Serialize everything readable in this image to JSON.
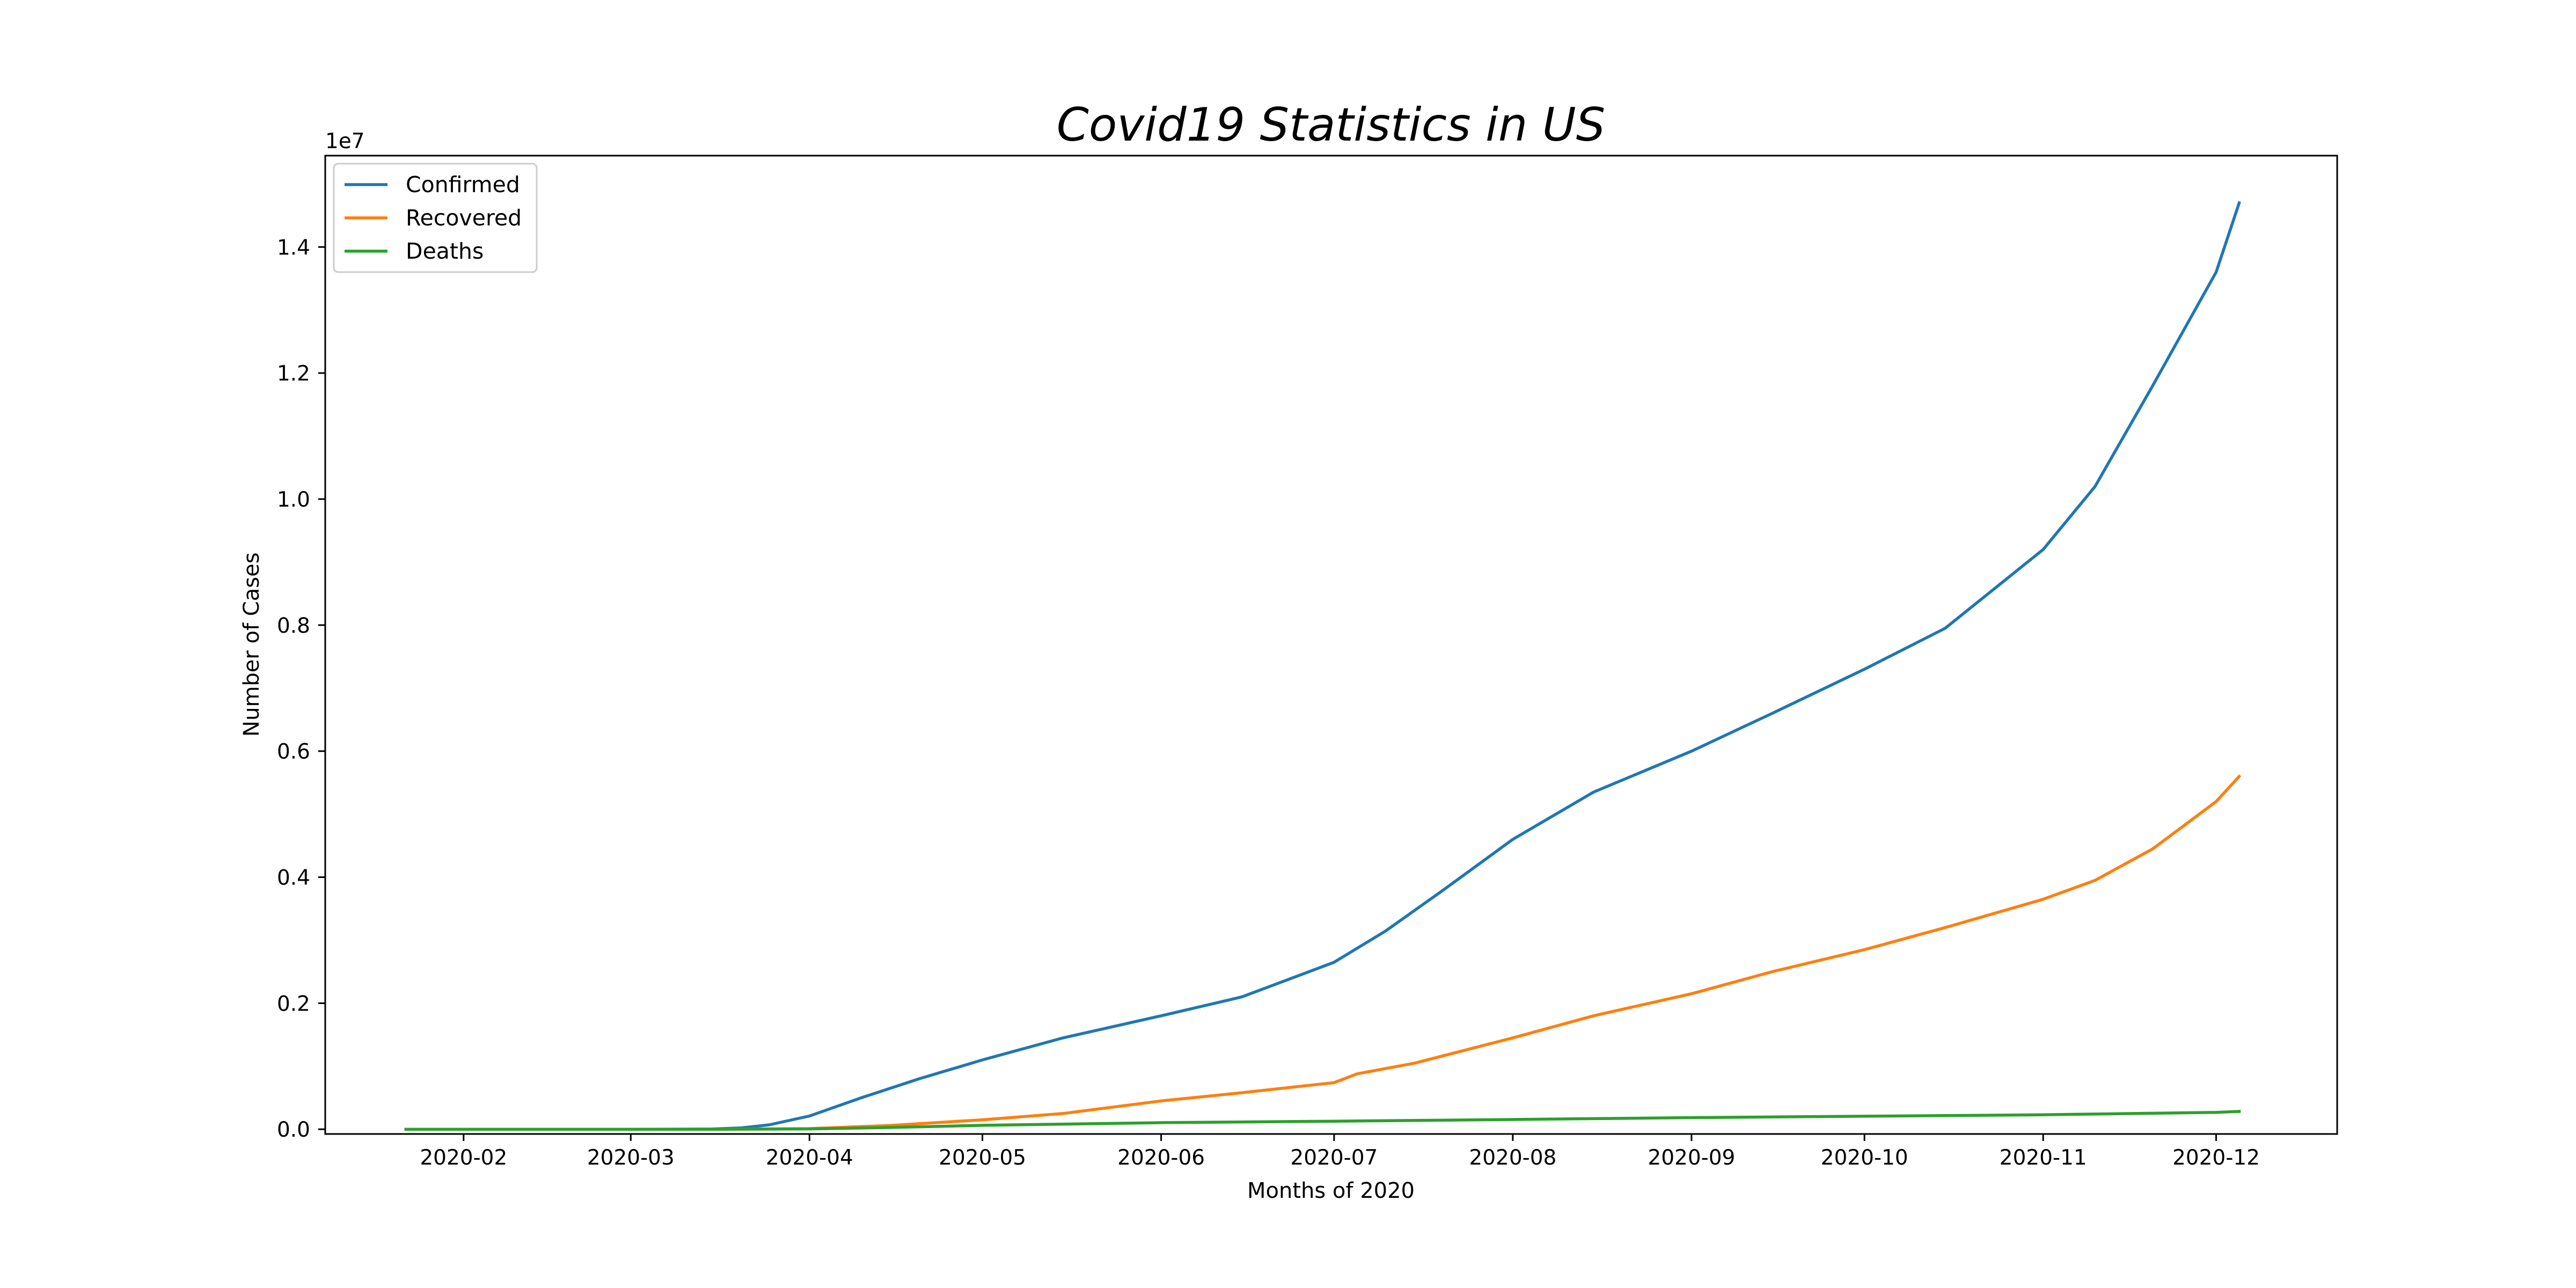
{
  "chart_data": {
    "type": "line",
    "title": "Covid19 Statistics in US",
    "xlabel": "Months of 2020",
    "ylabel": "Number of Cases",
    "y_offset_label": "1e7",
    "x_range": [
      "2020-01-08",
      "2020-12-22"
    ],
    "ylim": [
      -75000,
      15450000
    ],
    "x_ticks": [
      "2020-02-01",
      "2020-03-01",
      "2020-04-01",
      "2020-05-01",
      "2020-06-01",
      "2020-07-01",
      "2020-08-01",
      "2020-09-01",
      "2020-10-01",
      "2020-11-01",
      "2020-12-01"
    ],
    "x_tick_labels": [
      "2020-02",
      "2020-03",
      "2020-04",
      "2020-05",
      "2020-06",
      "2020-07",
      "2020-08",
      "2020-09",
      "2020-10",
      "2020-11",
      "2020-12"
    ],
    "y_ticks": [
      0,
      2000000,
      4000000,
      6000000,
      8000000,
      10000000,
      12000000,
      14000000
    ],
    "y_tick_labels": [
      "0.0",
      "0.2",
      "0.4",
      "0.6",
      "0.8",
      "1.0",
      "1.2",
      "1.4"
    ],
    "grid": false,
    "legend_position": "top-left",
    "series": [
      {
        "name": "Confirmed",
        "color": "#1f77b4",
        "x": [
          "2020-01-22",
          "2020-03-01",
          "2020-03-15",
          "2020-03-20",
          "2020-03-25",
          "2020-04-01",
          "2020-04-10",
          "2020-04-20",
          "2020-05-01",
          "2020-05-15",
          "2020-06-01",
          "2020-06-15",
          "2020-07-01",
          "2020-07-10",
          "2020-07-20",
          "2020-08-01",
          "2020-08-15",
          "2020-09-01",
          "2020-09-15",
          "2020-10-01",
          "2020-10-15",
          "2020-11-01",
          "2020-11-10",
          "2020-11-20",
          "2020-12-01",
          "2020-12-05"
        ],
        "values": [
          0,
          0,
          3000,
          20000,
          70000,
          210000,
          500000,
          800000,
          1100000,
          1450000,
          1800000,
          2100000,
          2650000,
          3150000,
          3800000,
          4600000,
          5350000,
          6000000,
          6600000,
          7300000,
          7950000,
          9200000,
          10200000,
          11800000,
          13600000,
          14700000
        ]
      },
      {
        "name": "Recovered",
        "color": "#ff7f0e",
        "x": [
          "2020-01-22",
          "2020-03-15",
          "2020-04-01",
          "2020-04-15",
          "2020-05-01",
          "2020-05-15",
          "2020-06-01",
          "2020-06-15",
          "2020-07-01",
          "2020-07-05",
          "2020-07-15",
          "2020-08-01",
          "2020-08-15",
          "2020-09-01",
          "2020-09-15",
          "2020-10-01",
          "2020-10-15",
          "2020-11-01",
          "2020-11-10",
          "2020-11-20",
          "2020-12-01",
          "2020-12-05"
        ],
        "values": [
          0,
          0,
          10000,
          60000,
          150000,
          250000,
          450000,
          580000,
          740000,
          880000,
          1050000,
          1450000,
          1800000,
          2150000,
          2500000,
          2850000,
          3200000,
          3650000,
          3950000,
          4450000,
          5200000,
          5600000
        ]
      },
      {
        "name": "Deaths",
        "color": "#2ca02c",
        "x": [
          "2020-01-22",
          "2020-03-15",
          "2020-04-01",
          "2020-04-15",
          "2020-05-01",
          "2020-06-01",
          "2020-07-01",
          "2020-08-01",
          "2020-09-01",
          "2020-10-01",
          "2020-11-01",
          "2020-12-01",
          "2020-12-05"
        ],
        "values": [
          0,
          0,
          5000,
          28000,
          62000,
          105000,
          128000,
          155000,
          185000,
          207000,
          230000,
          268000,
          283000
        ]
      }
    ]
  }
}
